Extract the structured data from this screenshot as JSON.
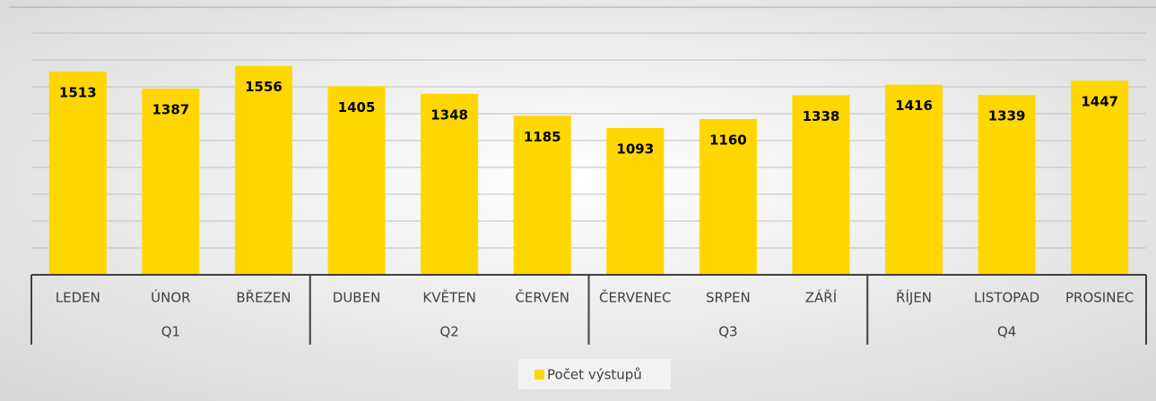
{
  "chart_data": {
    "type": "bar",
    "groups": [
      {
        "name": "Q1",
        "categories": [
          "LEDEN",
          "ÚNOR",
          "BŘEZEN"
        ]
      },
      {
        "name": "Q2",
        "categories": [
          "DUBEN",
          "KVĚTEN",
          "ČERVEN"
        ]
      },
      {
        "name": "Q3",
        "categories": [
          "ČERVENEC",
          "SRPEN",
          "ZÁŘÍ"
        ]
      },
      {
        "name": "Q4",
        "categories": [
          "ŘÍJEN",
          "LISTOPAD",
          "PROSINEC"
        ]
      }
    ],
    "series": [
      {
        "name": "Počet výstupů",
        "color": "#ffd700",
        "values": [
          1513,
          1387,
          1556,
          1405,
          1348,
          1185,
          1093,
          1160,
          1338,
          1416,
          1339,
          1447
        ]
      }
    ],
    "ylim": [
      0,
      1800
    ],
    "yticks": [
      0,
      200,
      400,
      600,
      800,
      1000,
      1200,
      1400,
      1600,
      1800
    ],
    "grid": true,
    "legend": "bottom"
  }
}
